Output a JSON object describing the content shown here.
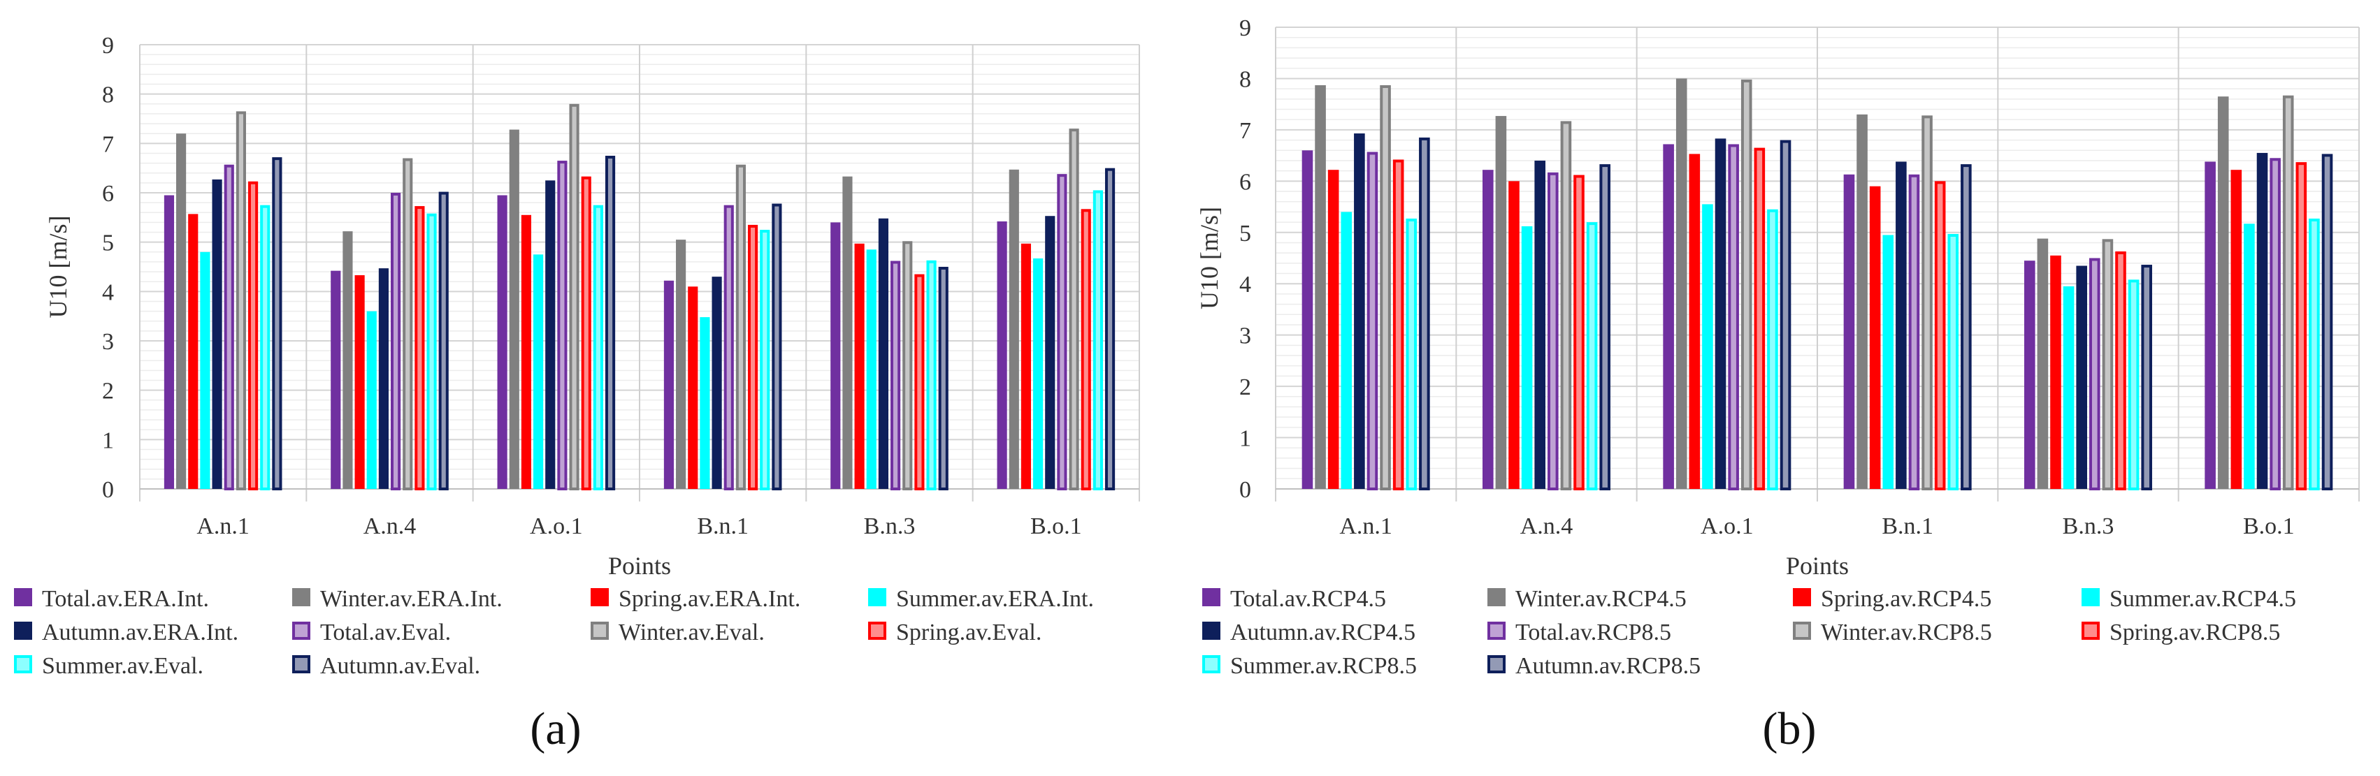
{
  "chart_data": [
    {
      "type": "bar",
      "panel_label": "(a)",
      "ylabel": "U10 [m/s]",
      "xlabel": "Points",
      "ylim": [
        0,
        9
      ],
      "yticks": [
        0,
        1,
        2,
        3,
        4,
        5,
        6,
        7,
        8,
        9
      ],
      "grid": true,
      "legend_position": "bottom",
      "categories": [
        "A.n.1",
        "A.n.4",
        "A.o.1",
        "B.n.1",
        "B.n.3",
        "B.o.1"
      ],
      "series": [
        {
          "name": "Total.av.ERA.Int.",
          "style": "solid",
          "color": "#7030a0",
          "values": [
            5.95,
            4.42,
            5.95,
            4.22,
            5.4,
            5.42
          ]
        },
        {
          "name": "Winter.av.ERA.Int.",
          "style": "solid",
          "color": "#808080",
          "values": [
            7.2,
            5.22,
            7.28,
            5.05,
            6.33,
            6.47
          ]
        },
        {
          "name": "Spring.av.ERA.Int.",
          "style": "solid",
          "color": "#ff0000",
          "values": [
            5.57,
            4.33,
            5.55,
            4.1,
            4.97,
            4.97
          ]
        },
        {
          "name": "Summer.av.ERA.Int.",
          "style": "solid",
          "color": "#00ffff",
          "values": [
            4.8,
            3.6,
            4.75,
            3.48,
            4.85,
            4.67
          ]
        },
        {
          "name": "Autumn.av.ERA.Int.",
          "style": "solid",
          "color": "#0e1f5b",
          "values": [
            6.27,
            4.47,
            6.25,
            4.3,
            5.48,
            5.53
          ]
        },
        {
          "name": "Total.av.Eval.",
          "style": "outline",
          "color": "#7030a0",
          "values": [
            6.57,
            6.0,
            6.65,
            5.75,
            4.62,
            6.38
          ]
        },
        {
          "name": "Winter.av.Eval.",
          "style": "outline",
          "color": "#808080",
          "values": [
            7.65,
            6.7,
            7.8,
            6.57,
            5.02,
            7.3
          ]
        },
        {
          "name": "Spring.av.Eval.",
          "style": "outline",
          "color": "#ff0000",
          "values": [
            6.23,
            5.73,
            6.33,
            5.35,
            4.35,
            5.67
          ]
        },
        {
          "name": "Summer.av.Eval.",
          "style": "outline",
          "color": "#00ffff",
          "values": [
            5.75,
            5.58,
            5.75,
            5.25,
            4.63,
            6.05
          ]
        },
        {
          "name": "Autumn.av.Eval.",
          "style": "outline",
          "color": "#0e1f5b",
          "values": [
            6.72,
            6.02,
            6.75,
            5.78,
            4.5,
            6.5
          ]
        }
      ]
    },
    {
      "type": "bar",
      "panel_label": "(b)",
      "ylabel": "U10 [m/s]",
      "xlabel": "Points",
      "ylim": [
        0,
        9
      ],
      "yticks": [
        0,
        1,
        2,
        3,
        4,
        5,
        6,
        7,
        8,
        9
      ],
      "grid": true,
      "legend_position": "bottom",
      "categories": [
        "A.n.1",
        "A.n.4",
        "A.o.1",
        "B.n.1",
        "B.n.3",
        "B.o.1"
      ],
      "series": [
        {
          "name": "Total.av.RCP4.5",
          "style": "solid",
          "color": "#7030a0",
          "values": [
            6.6,
            6.22,
            6.72,
            6.13,
            4.45,
            6.38
          ]
        },
        {
          "name": "Winter.av.RCP4.5",
          "style": "solid",
          "color": "#808080",
          "values": [
            7.87,
            7.27,
            8.0,
            7.3,
            4.88,
            7.65
          ]
        },
        {
          "name": "Spring.av.RCP4.5",
          "style": "solid",
          "color": "#ff0000",
          "values": [
            6.22,
            6.0,
            6.53,
            5.9,
            4.55,
            6.22
          ]
        },
        {
          "name": "Summer.av.RCP4.5",
          "style": "solid",
          "color": "#00ffff",
          "values": [
            5.4,
            5.12,
            5.55,
            4.95,
            3.95,
            5.17
          ]
        },
        {
          "name": "Autumn.av.RCP4.5",
          "style": "solid",
          "color": "#0e1f5b",
          "values": [
            6.93,
            6.4,
            6.83,
            6.38,
            4.35,
            6.55
          ]
        },
        {
          "name": "Total.av.RCP8.5",
          "style": "outline",
          "color": "#7030a0",
          "values": [
            6.57,
            6.17,
            6.72,
            6.13,
            4.5,
            6.45
          ]
        },
        {
          "name": "Winter.av.RCP8.5",
          "style": "outline",
          "color": "#808080",
          "values": [
            7.87,
            7.17,
            7.98,
            7.28,
            4.87,
            7.67
          ]
        },
        {
          "name": "Spring.av.RCP8.5",
          "style": "outline",
          "color": "#ff0000",
          "values": [
            6.42,
            6.12,
            6.65,
            6.0,
            4.63,
            6.37
          ]
        },
        {
          "name": "Summer.av.RCP8.5",
          "style": "outline",
          "color": "#00ffff",
          "values": [
            5.27,
            5.2,
            5.45,
            4.97,
            4.08,
            5.27
          ]
        },
        {
          "name": "Autumn.av.RCP8.5",
          "style": "outline",
          "color": "#0e1f5b",
          "values": [
            6.85,
            6.33,
            6.8,
            6.33,
            4.37,
            6.53
          ]
        }
      ]
    }
  ]
}
